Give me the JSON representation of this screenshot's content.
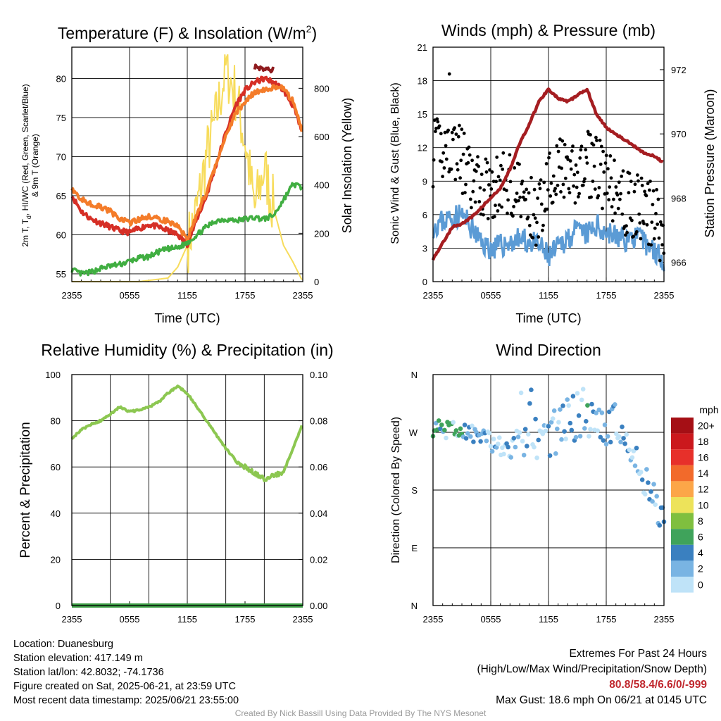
{
  "chart_data": [
    {
      "type": "line",
      "title_main": "Temperature (F) & Insolation (W/m",
      "title_sup": "2",
      "title_end": ")",
      "xlabel": "Time (UTC)",
      "ylabel_line1": "2m T, T",
      "ylabel_sub": "d",
      "ylabel_rest": ", HI/WC (Red, Green, Scarlet/Blue)",
      "ylabel_line2": "& 9m T (Orange)",
      "y2label": "Solar Insolation (Yellow)",
      "x_ticks": [
        "2355",
        "0555",
        "1155",
        "1755",
        "2355"
      ],
      "y_ticks": [
        "55",
        "60",
        "65",
        "70",
        "75",
        "80"
      ],
      "y2_ticks": [
        "0",
        "200",
        "400",
        "600",
        "800"
      ],
      "ylim": [
        54,
        84
      ],
      "y2lim": [
        0,
        970
      ],
      "x_hours": [
        0,
        1,
        2,
        3,
        4,
        5,
        6,
        7,
        8,
        9,
        10,
        11,
        12,
        13,
        14,
        15,
        16,
        17,
        18,
        19,
        20,
        21,
        22,
        23,
        24
      ],
      "series": [
        {
          "color": "#d62f26",
          "values": [
            65,
            63,
            62,
            61.5,
            61,
            60.5,
            60.3,
            60.8,
            61.3,
            61,
            60.5,
            60,
            58.8,
            62,
            65,
            69,
            73,
            76.5,
            78.5,
            79.5,
            80,
            79.5,
            78.5,
            76.5,
            72.8
          ]
        },
        {
          "color": "#f47c2a",
          "values": [
            66,
            64.5,
            64,
            63.5,
            63,
            62,
            61.5,
            62,
            62.3,
            62,
            61.7,
            61,
            59.5,
            62.5,
            65.5,
            69,
            72.5,
            75.5,
            77,
            78.3,
            78.5,
            78.8,
            78.8,
            77,
            73
          ]
        },
        {
          "color": "#40ae41",
          "values": [
            55.5,
            55,
            55.2,
            55.7,
            56,
            56.2,
            56.6,
            57,
            57.2,
            57.8,
            58.2,
            58.3,
            59,
            60,
            61,
            61.8,
            62,
            61.8,
            62,
            62.2,
            62,
            62.5,
            64.5,
            66.5,
            66
          ]
        },
        {
          "color": "#8f1b1e",
          "values": [
            null,
            null,
            null,
            null,
            null,
            null,
            null,
            null,
            null,
            null,
            null,
            null,
            null,
            null,
            null,
            null,
            null,
            null,
            null,
            81.5,
            81.3,
            81,
            null,
            null,
            null
          ]
        }
      ],
      "insolation": [
        0,
        0,
        0,
        0,
        0,
        0,
        0,
        0,
        5,
        10,
        15,
        60,
        150,
        300,
        520,
        680,
        880,
        780,
        580,
        300,
        470,
        300,
        150,
        80,
        0
      ]
    },
    {
      "type": "line",
      "title": "Winds (mph) & Pressure (mb)",
      "xlabel": "Time (UTC)",
      "ylabel": "Sonic Wind & Gust (Blue, Black)",
      "y2label": "Station Pressure (Maroon)",
      "x_ticks": [
        "2355",
        "0555",
        "1155",
        "1755",
        "2355"
      ],
      "y_ticks": [
        "0",
        "3",
        "6",
        "9",
        "12",
        "15",
        "18",
        "21"
      ],
      "y2_ticks": [
        "966",
        "968",
        "970",
        "972"
      ],
      "ylim": [
        0,
        21
      ],
      "y2lim": [
        965.4,
        972.7
      ],
      "x_hours": [
        0,
        1,
        2,
        3,
        4,
        5,
        6,
        7,
        8,
        9,
        10,
        11,
        12,
        13,
        14,
        15,
        16,
        17,
        18,
        19,
        20,
        21,
        22,
        23,
        24
      ],
      "wind": [
        5,
        5.4,
        5.8,
        6,
        4.8,
        3.5,
        3,
        3.2,
        3.5,
        3.8,
        3.5,
        3.2,
        2.2,
        3,
        4,
        4.5,
        4.2,
        5,
        4.5,
        4,
        3.8,
        4,
        3.5,
        2.8,
        2
      ],
      "pressure": [
        966.1,
        966.6,
        967.1,
        967.2,
        967.4,
        967.7,
        968.0,
        968.3,
        968.9,
        969.7,
        970.3,
        971.0,
        971.4,
        971.1,
        971.0,
        971.2,
        971.4,
        970.6,
        970.2,
        970.0,
        969.8,
        969.6,
        969.4,
        969.3,
        969.1
      ],
      "gust_mean": [
        11.5,
        12,
        12.2,
        11,
        8.5,
        8.5,
        8.5,
        8.5,
        9,
        8,
        6.5,
        6,
        9.5,
        10.5,
        9,
        9.5,
        10.5,
        10.5,
        8.5,
        8,
        7,
        6.8,
        6.2,
        6,
        4
      ],
      "max_gust": [
        1.7,
        18.6
      ]
    },
    {
      "type": "line",
      "title": "Relative Humidity (%) & Precipitation (in)",
      "ylabel": "Percent & Precipitation",
      "x_ticks": [
        "2355",
        "0555",
        "1155",
        "1755",
        "2355"
      ],
      "y_ticks": [
        "0",
        "20",
        "40",
        "60",
        "80",
        "100"
      ],
      "y2_ticks": [
        "0.00",
        "0.02",
        "0.04",
        "0.06",
        "0.08",
        "0.10"
      ],
      "ylim": [
        0,
        100
      ],
      "y2lim": [
        0,
        0.1
      ],
      "x_hours": [
        0,
        1,
        2,
        3,
        4,
        5,
        6,
        7,
        8,
        9,
        10,
        11,
        12,
        13,
        14,
        15,
        16,
        17,
        18,
        19,
        20,
        21,
        22,
        23,
        24
      ],
      "humidity": [
        72.5,
        76,
        78.5,
        80,
        83,
        86,
        84,
        84.5,
        86,
        88,
        92,
        95,
        92,
        86,
        80,
        74,
        68,
        63,
        60,
        57,
        55,
        56,
        58,
        68,
        79
      ],
      "precipitation": [
        0,
        0,
        0,
        0,
        0,
        0,
        0,
        0,
        0,
        0,
        0,
        0,
        0,
        0,
        0,
        0,
        0,
        0,
        0,
        0,
        0,
        0,
        0,
        0,
        0
      ]
    },
    {
      "type": "scatter",
      "title": "Wind Direction",
      "ylabel": "Direction (Colored By Speed)",
      "x_ticks": [
        "2355",
        "0555",
        "1155",
        "1755",
        "2355"
      ],
      "y_ticks": [
        "N",
        "E",
        "S",
        "W",
        "N"
      ],
      "ylim": [
        0,
        360
      ],
      "direction_mean": [
        278,
        275,
        272,
        271,
        269,
        262,
        255,
        248,
        240,
        270,
        310,
        275,
        265,
        270,
        285,
        300,
        298,
        292,
        280,
        275,
        260,
        225,
        195,
        160,
        130
      ],
      "legend_title": "mph",
      "legend_labels": [
        "20+",
        "18",
        "16",
        "14",
        "12",
        "10",
        "8",
        "6",
        "4",
        "2",
        "0"
      ],
      "legend_colors": [
        "#a50f15",
        "#cb181d",
        "#e7302a",
        "#f26a2b",
        "#fca648",
        "#ede35a",
        "#7fbf3f",
        "#3fa35b",
        "#3a80c0",
        "#79b4e3",
        "#bfe3f8"
      ],
      "speed_colors": [
        "#bfe3f8",
        "#79b4e3",
        "#3a80c0",
        "#3fa35b"
      ]
    }
  ],
  "info": {
    "location": "Location: Duanesburg",
    "elevation": "Station elevation: 417.149 m",
    "latlon": "Station lat/lon: 42.8032; -74.1736",
    "created": "Figure created on Sat, 2025-06-21, at 23:59 UTC",
    "recent": "Most recent data timestamp: 2025/06/21 23:55:00"
  },
  "extremes": {
    "title": "Extremes For Past 24 Hours",
    "subtitle": "(High/Low/Max Wind/Precipitation/Snow Depth)",
    "values": "80.8/58.4/6.6/0/-999",
    "max_gust": "Max Gust: 18.6 mph On 06/21 at 0145 UTC"
  },
  "credit": "Created By Nick Bassill Using Data Provided By The NYS Mesonet"
}
